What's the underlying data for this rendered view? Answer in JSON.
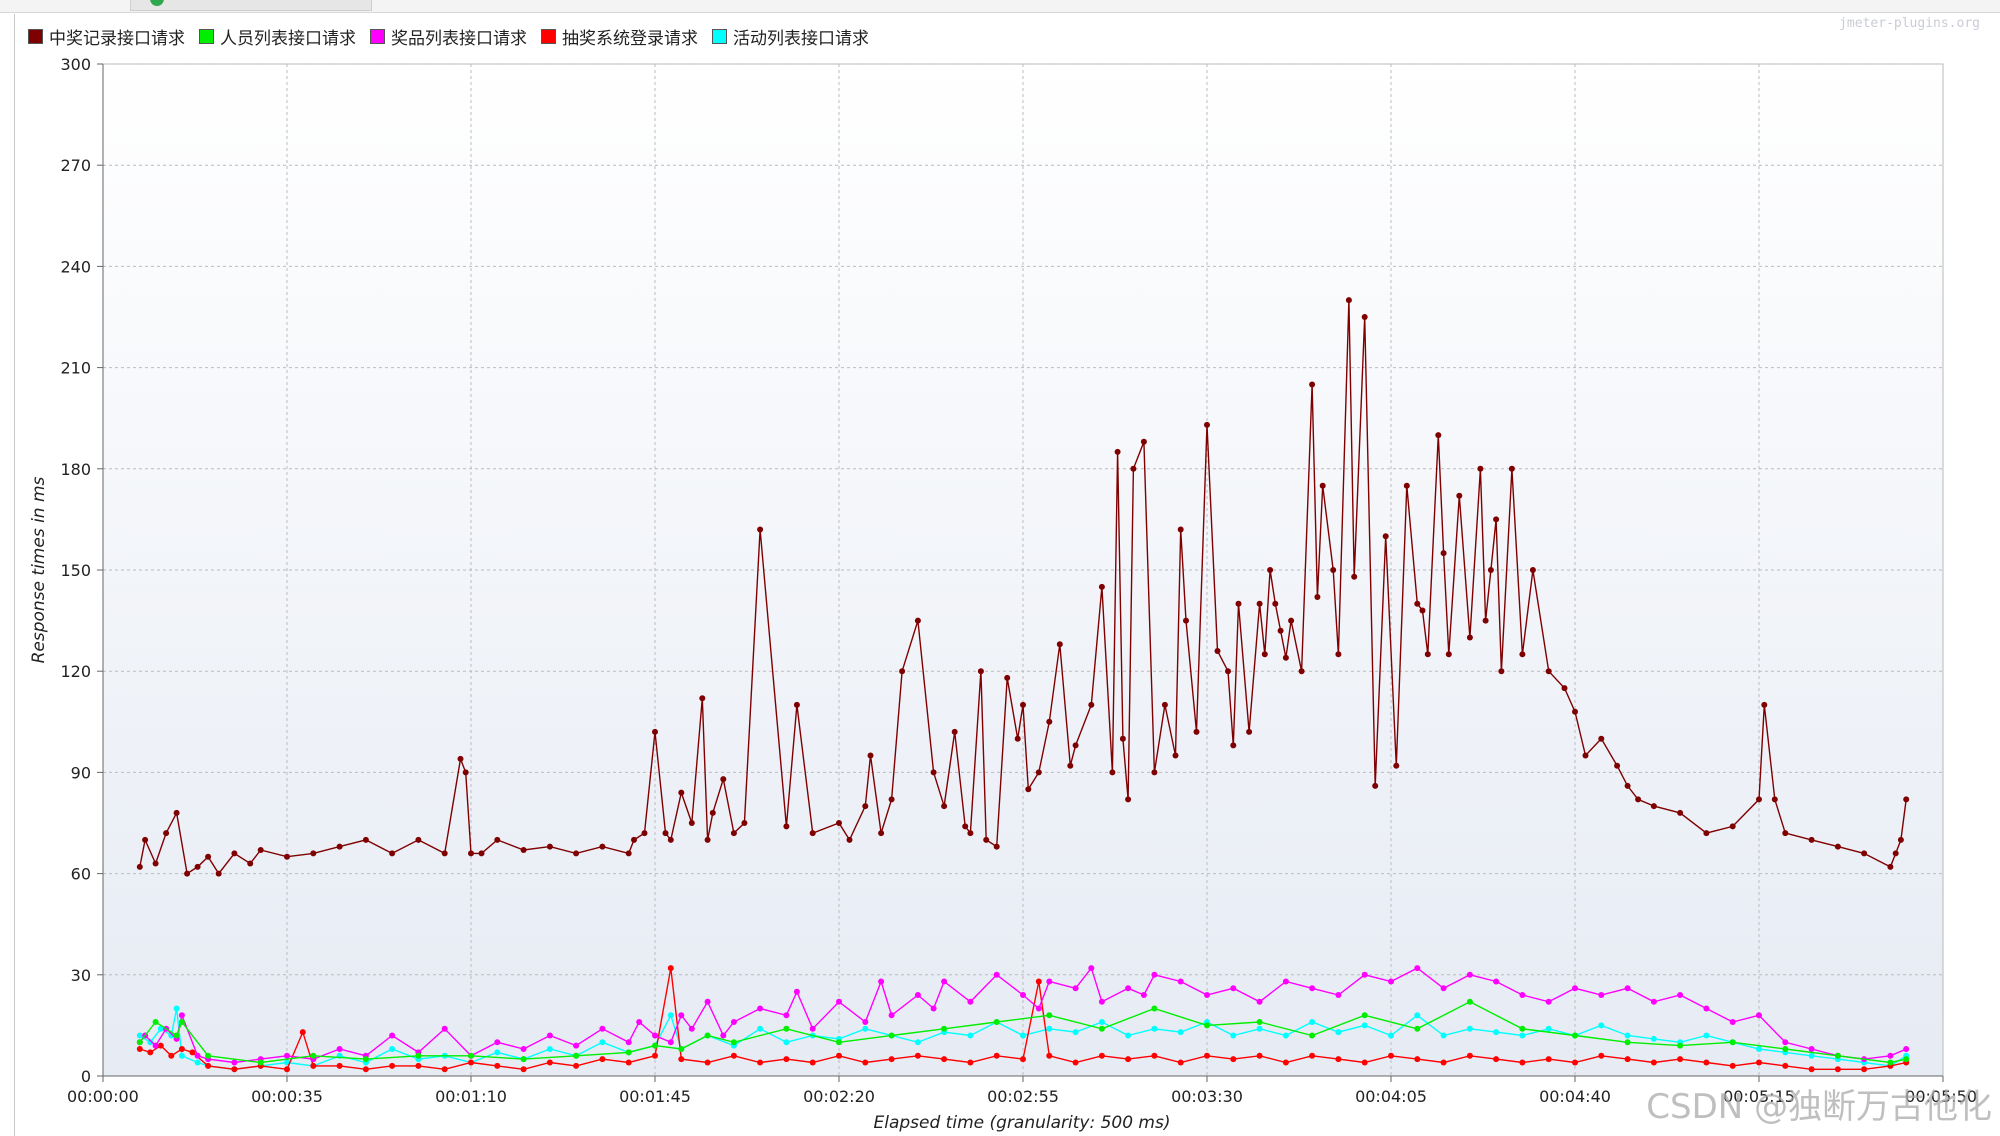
{
  "window": {
    "status_color": "#2fa84f"
  },
  "credit": "jmeter-plugins.org",
  "watermark": "CSDN @独断万古他化",
  "chart_data": {
    "type": "line",
    "xlabel": "Elapsed time (granularity: 500 ms)",
    "ylabel": "Response times in ms",
    "ylim": [
      0,
      300
    ],
    "xlim_seconds": [
      0,
      350
    ],
    "yticks": [
      0,
      30,
      60,
      90,
      120,
      150,
      180,
      210,
      240,
      270,
      300
    ],
    "xticks": [
      "00:00:00",
      "00:00:35",
      "00:01:10",
      "00:01:45",
      "00:02:20",
      "00:02:55",
      "00:03:30",
      "00:04:05",
      "00:04:40",
      "00:05:15",
      "00:05:50"
    ],
    "grid": true,
    "legend_position": "top-left",
    "series": [
      {
        "name": "中奖记录接口请求",
        "color": "#7f0000",
        "x": [
          7,
          8,
          10,
          12,
          14,
          16,
          18,
          20,
          22,
          25,
          28,
          30,
          35,
          40,
          45,
          50,
          55,
          60,
          65,
          68,
          69,
          70,
          72,
          75,
          80,
          85,
          90,
          95,
          100,
          101,
          103,
          105,
          107,
          108,
          110,
          112,
          114,
          115,
          116,
          118,
          120,
          122,
          125,
          130,
          132,
          135,
          140,
          142,
          145,
          146,
          148,
          150,
          152,
          155,
          158,
          160,
          162,
          164,
          165,
          167,
          168,
          170,
          172,
          174,
          175,
          176,
          178,
          180,
          182,
          184,
          185,
          188,
          190,
          192,
          193,
          194,
          195,
          196,
          198,
          200,
          202,
          204,
          205,
          206,
          208,
          210,
          212,
          214,
          215,
          216,
          218,
          220,
          221,
          222,
          223,
          224,
          225,
          226,
          228,
          230,
          231,
          232,
          234,
          235,
          237,
          238,
          240,
          242,
          244,
          246,
          248,
          250,
          251,
          252,
          254,
          255,
          256,
          258,
          260,
          262,
          263,
          264,
          265,
          266,
          268,
          270,
          272,
          275,
          278,
          280,
          282,
          285,
          288,
          290,
          292,
          295,
          300,
          305,
          310,
          315,
          316,
          318,
          320,
          325,
          330,
          335,
          340,
          341,
          342,
          343
        ],
        "y": [
          62,
          70,
          63,
          72,
          78,
          60,
          62,
          65,
          60,
          66,
          63,
          67,
          65,
          66,
          68,
          70,
          66,
          70,
          66,
          94,
          90,
          66,
          66,
          70,
          67,
          68,
          66,
          68,
          66,
          70,
          72,
          102,
          72,
          70,
          84,
          75,
          112,
          70,
          78,
          88,
          72,
          75,
          162,
          74,
          110,
          72,
          75,
          70,
          80,
          95,
          72,
          82,
          120,
          135,
          90,
          80,
          102,
          74,
          72,
          120,
          70,
          68,
          118,
          100,
          110,
          85,
          90,
          105,
          128,
          92,
          98,
          110,
          145,
          90,
          185,
          100,
          82,
          180,
          188,
          90,
          110,
          95,
          162,
          135,
          102,
          193,
          126,
          120,
          98,
          140,
          102,
          140,
          125,
          150,
          140,
          132,
          124,
          135,
          120,
          205,
          142,
          175,
          150,
          125,
          230,
          148,
          225,
          86,
          160,
          92,
          175,
          140,
          138,
          125,
          190,
          155,
          125,
          172,
          130,
          180,
          135,
          150,
          165,
          120,
          180,
          125,
          150,
          120,
          115,
          108,
          95,
          100,
          92,
          86,
          82,
          80,
          78,
          72,
          74,
          82,
          110,
          82,
          72,
          70,
          68,
          66,
          62,
          66,
          70,
          82
        ]
      },
      {
        "name": "人员列表接口请求",
        "color": "#00ee00",
        "x": [
          7,
          10,
          14,
          15,
          20,
          30,
          40,
          50,
          60,
          70,
          80,
          90,
          100,
          105,
          110,
          115,
          120,
          130,
          140,
          150,
          160,
          170,
          180,
          190,
          200,
          210,
          220,
          230,
          240,
          250,
          260,
          270,
          280,
          290,
          300,
          310,
          320,
          330,
          340,
          343
        ],
        "y": [
          10,
          16,
          12,
          16,
          6,
          4,
          6,
          5,
          6,
          6,
          5,
          6,
          7,
          9,
          8,
          12,
          10,
          14,
          10,
          12,
          14,
          16,
          18,
          14,
          20,
          15,
          16,
          12,
          18,
          14,
          22,
          14,
          12,
          10,
          9,
          10,
          8,
          6,
          4,
          5
        ]
      },
      {
        "name": "奖品列表接口请求",
        "color": "#ff00ff",
        "x": [
          7,
          8,
          10,
          12,
          14,
          15,
          18,
          20,
          25,
          30,
          35,
          40,
          45,
          50,
          55,
          60,
          65,
          70,
          75,
          80,
          85,
          90,
          95,
          100,
          102,
          105,
          108,
          110,
          112,
          115,
          118,
          120,
          125,
          130,
          132,
          135,
          140,
          145,
          148,
          150,
          155,
          158,
          160,
          165,
          170,
          175,
          178,
          180,
          185,
          188,
          190,
          195,
          198,
          200,
          205,
          210,
          215,
          220,
          225,
          230,
          235,
          240,
          245,
          250,
          255,
          260,
          265,
          270,
          275,
          280,
          285,
          290,
          295,
          300,
          305,
          310,
          315,
          320,
          325,
          330,
          335,
          340,
          343
        ],
        "y": [
          10,
          12,
          9,
          14,
          11,
          18,
          6,
          5,
          4,
          5,
          6,
          5,
          8,
          6,
          12,
          7,
          14,
          6,
          10,
          8,
          12,
          9,
          14,
          10,
          16,
          12,
          10,
          18,
          14,
          22,
          12,
          16,
          20,
          18,
          25,
          14,
          22,
          16,
          28,
          18,
          24,
          20,
          28,
          22,
          30,
          24,
          20,
          28,
          26,
          32,
          22,
          26,
          24,
          30,
          28,
          24,
          26,
          22,
          28,
          26,
          24,
          30,
          28,
          32,
          26,
          30,
          28,
          24,
          22,
          26,
          24,
          26,
          22,
          24,
          20,
          16,
          18,
          10,
          8,
          6,
          5,
          6,
          8
        ]
      },
      {
        "name": "抽奖系统登录请求",
        "color": "#ff0000",
        "x": [
          7,
          9,
          11,
          13,
          15,
          17,
          20,
          25,
          30,
          35,
          38,
          40,
          45,
          50,
          55,
          60,
          65,
          70,
          75,
          80,
          85,
          90,
          95,
          100,
          105,
          108,
          110,
          115,
          120,
          125,
          130,
          135,
          140,
          145,
          150,
          155,
          160,
          165,
          170,
          175,
          178,
          180,
          185,
          190,
          195,
          200,
          205,
          210,
          215,
          220,
          225,
          230,
          235,
          240,
          245,
          250,
          255,
          260,
          265,
          270,
          275,
          280,
          285,
          290,
          295,
          300,
          305,
          310,
          315,
          320,
          325,
          330,
          335,
          340,
          343
        ],
        "y": [
          8,
          7,
          9,
          6,
          8,
          7,
          3,
          2,
          3,
          2,
          13,
          3,
          3,
          2,
          3,
          3,
          2,
          4,
          3,
          2,
          4,
          3,
          5,
          4,
          6,
          32,
          5,
          4,
          6,
          4,
          5,
          4,
          6,
          4,
          5,
          6,
          5,
          4,
          6,
          5,
          28,
          6,
          4,
          6,
          5,
          6,
          4,
          6,
          5,
          6,
          4,
          6,
          5,
          4,
          6,
          5,
          4,
          6,
          5,
          4,
          5,
          4,
          6,
          5,
          4,
          5,
          4,
          3,
          4,
          3,
          2,
          2,
          2,
          3,
          4
        ]
      },
      {
        "name": "活动列表接口请求",
        "color": "#00ffff",
        "x": [
          7,
          9,
          11,
          13,
          14,
          15,
          18,
          20,
          25,
          30,
          35,
          40,
          45,
          50,
          55,
          60,
          65,
          70,
          75,
          80,
          85,
          90,
          95,
          100,
          105,
          108,
          110,
          115,
          120,
          125,
          130,
          135,
          140,
          145,
          150,
          155,
          160,
          165,
          170,
          175,
          180,
          185,
          190,
          195,
          200,
          205,
          210,
          215,
          220,
          225,
          230,
          235,
          240,
          245,
          250,
          255,
          260,
          265,
          270,
          275,
          280,
          285,
          290,
          295,
          300,
          305,
          310,
          315,
          320,
          325,
          330,
          335,
          340,
          343
        ],
        "y": [
          12,
          10,
          14,
          12,
          20,
          6,
          4,
          3,
          2,
          3,
          4,
          3,
          6,
          4,
          8,
          5,
          6,
          4,
          7,
          5,
          8,
          6,
          10,
          7,
          9,
          18,
          8,
          12,
          9,
          14,
          10,
          12,
          11,
          14,
          12,
          10,
          13,
          12,
          16,
          12,
          14,
          13,
          16,
          12,
          14,
          13,
          16,
          12,
          14,
          12,
          16,
          13,
          15,
          12,
          18,
          12,
          14,
          13,
          12,
          14,
          12,
          15,
          12,
          11,
          10,
          12,
          10,
          8,
          7,
          6,
          5,
          4,
          3,
          6
        ]
      }
    ]
  }
}
